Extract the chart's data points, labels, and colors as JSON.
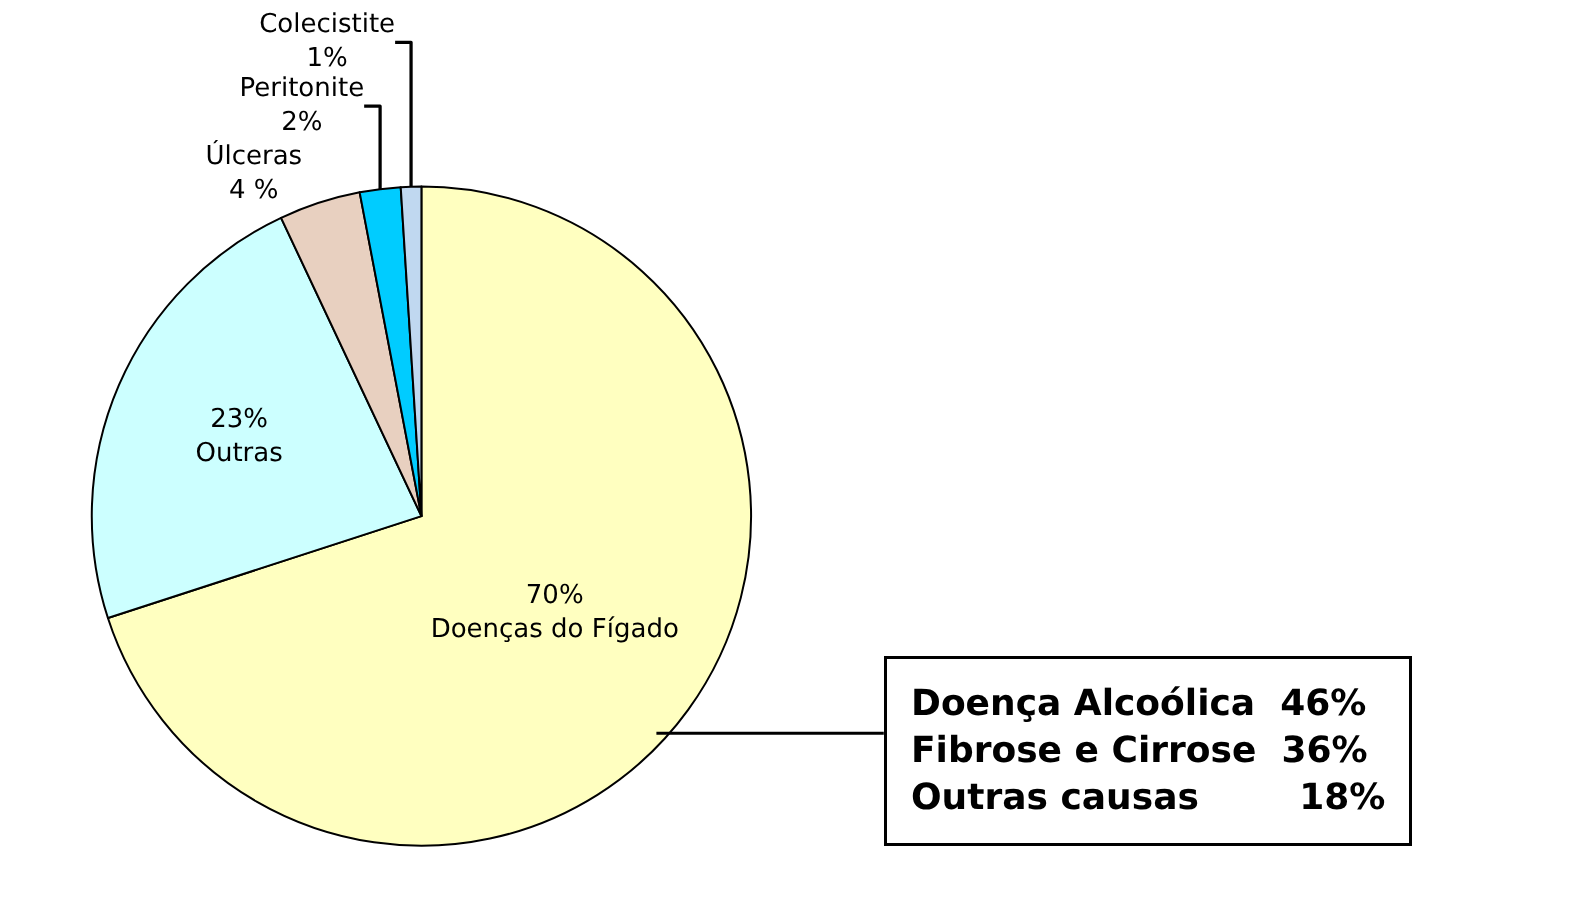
{
  "chart_data": {
    "type": "pie",
    "categories": [
      "Doenças do Fígado",
      "Outras",
      "Úlceras",
      "Peritonite",
      "Colecistite"
    ],
    "values": [
      70,
      23,
      4,
      2,
      1
    ],
    "value_labels": [
      "70%",
      "23%",
      "4 %",
      "2%",
      "1%"
    ],
    "colors": [
      "#ffffc0",
      "#ccffff",
      "#e8d0c0",
      "#00ccff",
      "#c0d8f0"
    ],
    "legend": false,
    "annotations": [
      "Doença Alcoólica  46%\nFibrose e Cirrose  36%\nOutras causas        18%"
    ]
  }
}
